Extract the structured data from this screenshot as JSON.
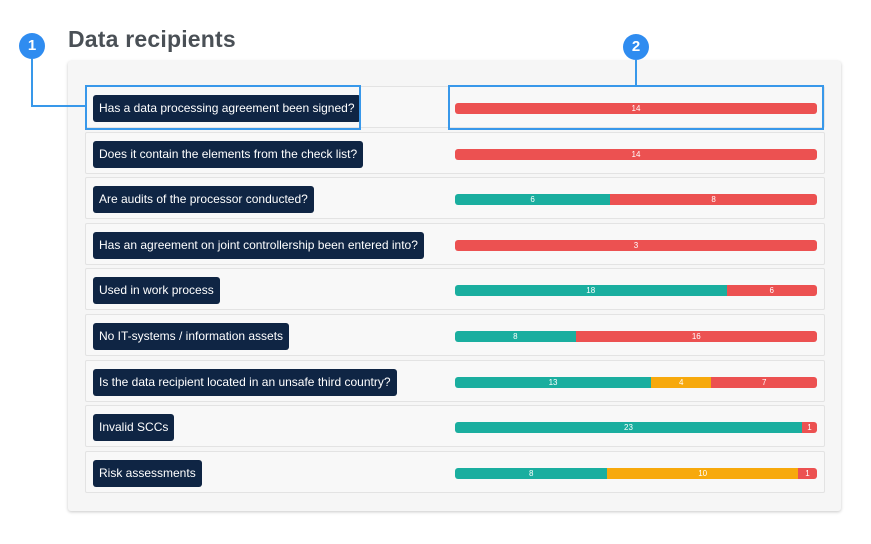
{
  "title": "Data recipients",
  "colors": {
    "yes": "#1aae9f",
    "partial": "#f7a90c",
    "no": "#ec5151"
  },
  "callouts": [
    "1",
    "2"
  ],
  "rows": [
    {
      "question": "Has a data processing agreement been signed?",
      "segments": [
        {
          "status": "no",
          "value": 14
        }
      ]
    },
    {
      "question": "Does it contain the elements from the check list?",
      "segments": [
        {
          "status": "no",
          "value": 14
        }
      ]
    },
    {
      "question": "Are audits of the processor conducted?",
      "segments": [
        {
          "status": "yes",
          "value": 6
        },
        {
          "status": "no",
          "value": 8
        }
      ]
    },
    {
      "question": "Has an agreement on joint controllership been entered into?",
      "segments": [
        {
          "status": "no",
          "value": 3
        }
      ]
    },
    {
      "question": "Used in work process",
      "segments": [
        {
          "status": "yes",
          "value": 18
        },
        {
          "status": "no",
          "value": 6
        }
      ]
    },
    {
      "question": "No IT-systems / information assets",
      "segments": [
        {
          "status": "yes",
          "value": 8
        },
        {
          "status": "no",
          "value": 16
        }
      ]
    },
    {
      "question": "Is the data recipient located in an unsafe third country?",
      "segments": [
        {
          "status": "yes",
          "value": 13
        },
        {
          "status": "partial",
          "value": 4
        },
        {
          "status": "no",
          "value": 7
        }
      ]
    },
    {
      "question": "Invalid SCCs",
      "segments": [
        {
          "status": "yes",
          "value": 23
        },
        {
          "status": "no",
          "value": 1
        }
      ]
    },
    {
      "question": "Risk assessments",
      "segments": [
        {
          "status": "yes",
          "value": 8
        },
        {
          "status": "partial",
          "value": 10
        },
        {
          "status": "no",
          "value": 1
        }
      ]
    }
  ]
}
